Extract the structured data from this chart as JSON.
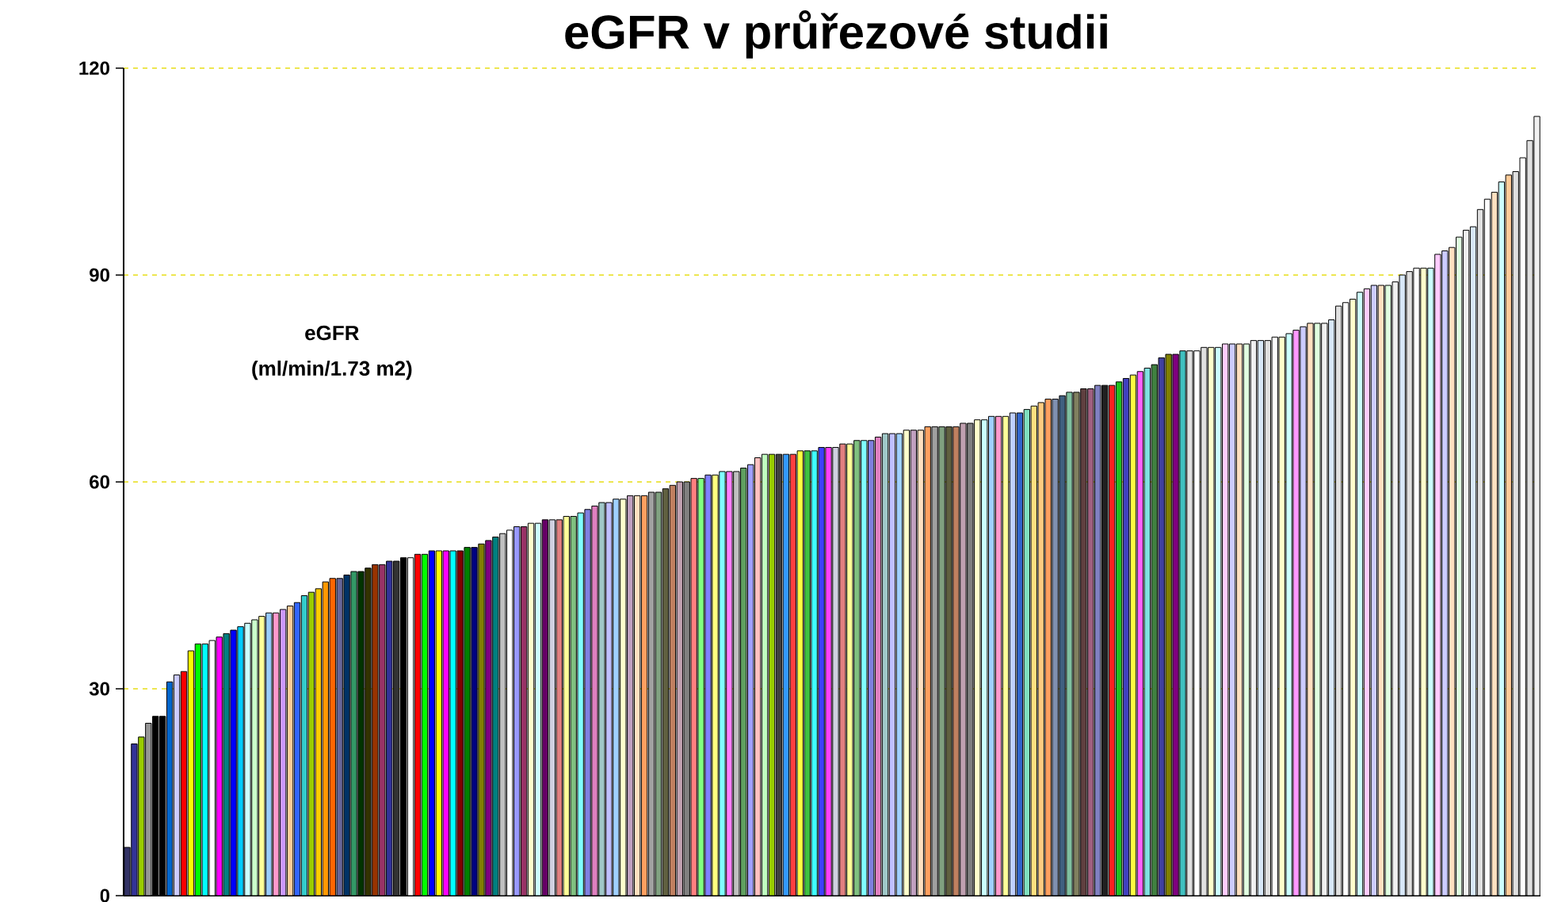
{
  "chart_data": {
    "type": "bar",
    "title": "eGFR v průřezové studii",
    "annotations": [
      "eGFR",
      "(ml/min/1.73 m2)"
    ],
    "categories": [
      null,
      null,
      null,
      null,
      null,
      null,
      null,
      null,
      null,
      null,
      null,
      null,
      null,
      null,
      null,
      null,
      null,
      null,
      null,
      null,
      null,
      null,
      null,
      null,
      null,
      null,
      null,
      null,
      null,
      null,
      null,
      null,
      null,
      null,
      null,
      null,
      null,
      null,
      null,
      null,
      null,
      null,
      null,
      null,
      null,
      null,
      null,
      null,
      null,
      null,
      null,
      null,
      null,
      null,
      null,
      null,
      null,
      null,
      null,
      null,
      null,
      null,
      null,
      null,
      null,
      null,
      null,
      null,
      null,
      null,
      null,
      null,
      null,
      null,
      null,
      null,
      null,
      null,
      null,
      null,
      null,
      null,
      null,
      null,
      null,
      null,
      null,
      null,
      null,
      null,
      null,
      null,
      null,
      null,
      null,
      null,
      null,
      null,
      null,
      null,
      null,
      null,
      null,
      null,
      null,
      null,
      null,
      null,
      null,
      null,
      null,
      null,
      null,
      null,
      null,
      null,
      null,
      null,
      null,
      null,
      null,
      null,
      null,
      null,
      null,
      null,
      null,
      null,
      null,
      null,
      null,
      null,
      null,
      null,
      null,
      null,
      null,
      null,
      null,
      null,
      null,
      null,
      null,
      null,
      null,
      null,
      null,
      null,
      null,
      null,
      null,
      null,
      null,
      null,
      null,
      null,
      null,
      null,
      null,
      null,
      null,
      null,
      null,
      null,
      null,
      null,
      null,
      null,
      null,
      null,
      null,
      null,
      null,
      null,
      null,
      null,
      null,
      null,
      null,
      null,
      null,
      null,
      null,
      null,
      null,
      null,
      null,
      null,
      null,
      null,
      null,
      null,
      null,
      null,
      null,
      null,
      null,
      null,
      null,
      null
    ],
    "values": [
      7,
      22,
      23,
      25,
      26,
      26,
      31,
      32,
      32.5,
      35.5,
      36.5,
      36.5,
      37,
      37.5,
      38,
      38.5,
      39,
      39.5,
      40,
      40.5,
      41,
      41,
      41.5,
      42,
      42.5,
      43.5,
      44,
      44.5,
      45.5,
      46,
      46,
      46.5,
      47,
      47,
      47.5,
      48,
      48,
      48.5,
      48.5,
      49,
      49,
      49.5,
      49.5,
      50,
      50,
      50,
      50,
      50,
      50.5,
      50.5,
      51,
      51.5,
      52,
      52.5,
      53,
      53.5,
      53.5,
      54,
      54,
      54.5,
      54.5,
      54.5,
      55,
      55,
      55.5,
      56,
      56.5,
      57,
      57,
      57.5,
      57.5,
      58,
      58,
      58,
      58.5,
      58.5,
      59,
      59.5,
      60,
      60,
      60.5,
      60.5,
      61,
      61,
      61.5,
      61.5,
      61.5,
      62,
      62.5,
      63.5,
      64,
      64,
      64,
      64,
      64,
      64.5,
      64.5,
      64.5,
      65,
      65,
      65,
      65.5,
      65.5,
      66,
      66,
      66,
      66.5,
      67,
      67,
      67,
      67.5,
      67.5,
      67.5,
      68,
      68,
      68,
      68,
      68,
      68.5,
      68.5,
      69,
      69,
      69.5,
      69.5,
      69.5,
      70,
      70,
      70.5,
      71,
      71.5,
      72,
      72,
      72.5,
      73,
      73,
      73.5,
      73.5,
      74,
      74,
      74,
      74.5,
      75,
      75.5,
      76,
      76.5,
      77,
      78,
      78.5,
      78.5,
      79,
      79,
      79,
      79.5,
      79.5,
      79.5,
      80,
      80,
      80,
      80,
      80.5,
      80.5,
      80.5,
      81,
      81,
      81.5,
      82,
      82.5,
      83,
      83,
      83,
      83.5,
      85.5,
      86,
      86.5,
      87.5,
      88,
      88.5,
      88.5,
      88.5,
      89,
      90,
      90.5,
      91,
      91,
      91,
      93,
      93.5,
      94,
      95.5,
      96.5,
      97,
      99.5,
      101,
      102,
      103.5,
      104.5,
      105,
      107,
      109.5,
      113
    ],
    "colors": [
      "#333366",
      "#333399",
      "#99cc00",
      "#969696",
      "#000000",
      "#000000",
      "#0066cc",
      "#ccccff",
      "#ff0000",
      "#ffff00",
      "#00ff00",
      "#00ffff",
      "#ffffff",
      "#ff00ff",
      "#008080",
      "#0000ff",
      "#00ccff",
      "#ccffff",
      "#ccffcc",
      "#ffff99",
      "#99ccff",
      "#ff99cc",
      "#cc99ff",
      "#ffcc99",
      "#3366ff",
      "#33cccc",
      "#99cc00",
      "#ffcc00",
      "#ff9900",
      "#ff6600",
      "#666699",
      "#003366",
      "#339966",
      "#003300",
      "#333300",
      "#993300",
      "#993366",
      "#333399",
      "#333333",
      "#000000",
      "#ffffff",
      "#ff0000",
      "#00ff00",
      "#0000ff",
      "#ffff00",
      "#ff00ff",
      "#00ffff",
      "#800000",
      "#008000",
      "#000080",
      "#808000",
      "#800080",
      "#008080",
      "#c0c0c0",
      "#ffffff",
      "#9999ff",
      "#993366",
      "#ffffcc",
      "#ccffff",
      "#660066",
      "#d0d0e0",
      "#e08080",
      "#ffff99",
      "#80c080",
      "#80ffff",
      "#8080e0",
      "#e080c0",
      "#a0c8c8",
      "#c0c0ff",
      "#a0d0ff",
      "#ffffcc",
      "#c0a0c0",
      "#ffe0c0",
      "#ffa060",
      "#a0a0a0",
      "#80a080",
      "#606040",
      "#c08060",
      "#c0a0b0",
      "#808080",
      "#ff8080",
      "#80ff80",
      "#8080ff",
      "#ffff80",
      "#80ffff",
      "#ff80ff",
      "#c0c0c0",
      "#60a060",
      "#a0a0ff",
      "#ffc0c0",
      "#c0ffc0",
      "#99cc00",
      "#404040",
      "#3399ff",
      "#ff4040",
      "#ffff40",
      "#40c040",
      "#40ffff",
      "#4040ff",
      "#ff40ff",
      "#d0d0e0",
      "#e08080",
      "#ffff99",
      "#80c080",
      "#80ffff",
      "#8080e0",
      "#e080c0",
      "#a0c8c8",
      "#c0c0ff",
      "#a0d0ff",
      "#ffffcc",
      "#c0a0c0",
      "#ffe0c0",
      "#ffa060",
      "#a0a0a0",
      "#80a080",
      "#606040",
      "#c08060",
      "#c0a0b0",
      "#808080",
      "#ffffcc",
      "#ccffff",
      "#a0d0ff",
      "#ff99cc",
      "#ffff99",
      "#c0d0ff",
      "#3366cc",
      "#80e0c0",
      "#ffe080",
      "#ffcc80",
      "#ffa060",
      "#8090b0",
      "#406080",
      "#80c0a0",
      "#808060",
      "#604040",
      "#a06080",
      "#8080c0",
      "#202020",
      "#ff2020",
      "#20c020",
      "#4040c0",
      "#ffff40",
      "#ff60ff",
      "#80e0e0",
      "#408040",
      "#4040a0",
      "#808000",
      "#800080",
      "#40c0c0",
      "#e0e0e0",
      "#ffffff",
      "#e0e0e0",
      "#ffffcc",
      "#ccffff",
      "#ffccff",
      "#ccccff",
      "#ffe0c0",
      "#e0ffe0",
      "#f0f0f0",
      "#d8e8f8",
      "#e0e0e0",
      "#ffffff",
      "#ffffcc",
      "#ccffff",
      "#ff99ff",
      "#ccccff",
      "#ffe0c0",
      "#e0ffe0",
      "#f0f0f0",
      "#d8e8f8",
      "#e0e0e0",
      "#ffffff",
      "#ffffcc",
      "#ccffff",
      "#ffccff",
      "#ccccff",
      "#ffe0c0",
      "#e0ffe0",
      "#f0f0f0",
      "#d8e8f8",
      "#e0e0e0",
      "#ffffff",
      "#ffffcc",
      "#ccffff",
      "#ffccff",
      "#ccccff",
      "#ffe0c0",
      "#e0ffe0",
      "#f0f0f0",
      "#d8e8f8",
      "#e0e0e0",
      "#ffffff",
      "#ffe0c0",
      "#ccffff",
      "#ffcc99",
      "#e0e0e0",
      "#ffffff",
      "#e0e0e0",
      "#f0f0f0"
    ],
    "ylim": [
      0,
      120
    ],
    "yticks": [
      0,
      30,
      60,
      90,
      120
    ],
    "grid": "y",
    "tick_labels": "y"
  }
}
